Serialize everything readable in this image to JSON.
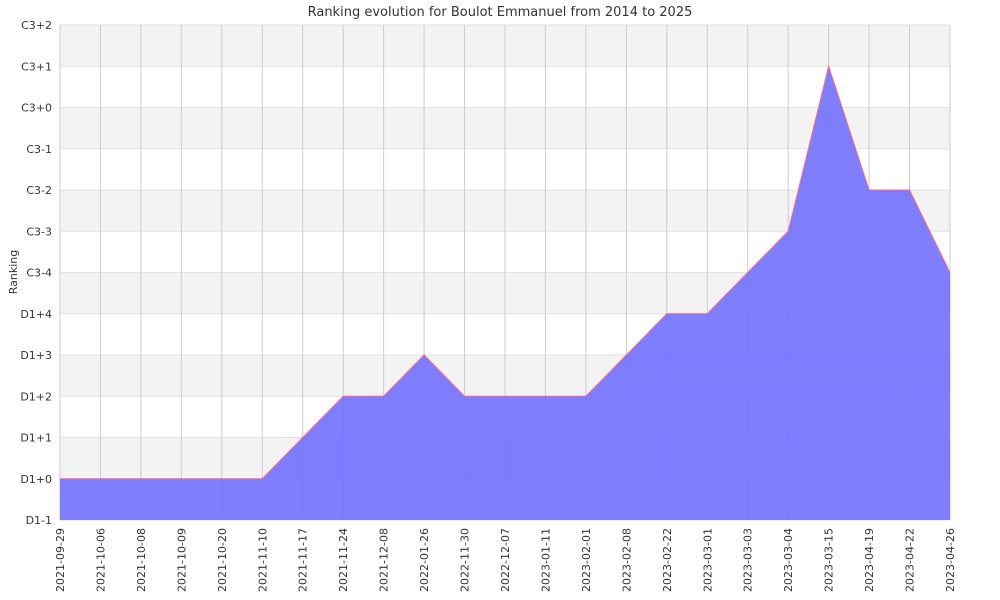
{
  "chart_data": {
    "type": "area",
    "title": "Ranking evolution for Boulot Emmanuel from 2014 to 2025",
    "xlabel": "",
    "ylabel": "Ranking",
    "y_categories": [
      "D1-1",
      "D1+0",
      "D1+1",
      "D1+2",
      "D1+3",
      "D1+4",
      "C3-4",
      "C3-3",
      "C3-2",
      "C3-1",
      "C3+0",
      "C3+1",
      "C3+2"
    ],
    "x": [
      "2021-09-29",
      "2021-10-06",
      "2021-10-08",
      "2021-10-09",
      "2021-10-20",
      "2021-11-10",
      "2021-11-17",
      "2021-11-24",
      "2021-12-08",
      "2022-01-26",
      "2022-11-30",
      "2022-12-07",
      "2023-01-11",
      "2023-02-01",
      "2023-02-08",
      "2023-02-22",
      "2023-03-01",
      "2023-03-03",
      "2023-03-04",
      "2023-03-15",
      "2023-04-19",
      "2023-04-22",
      "2023-04-26"
    ],
    "series": [
      {
        "values": [
          "D1+0",
          "D1+0",
          "D1+0",
          "D1+0",
          "D1+0",
          "D1+0",
          "D1+1",
          "D1+2",
          "D1+2",
          "D1+3",
          "D1+2",
          "D1+2",
          "D1+2",
          "D1+2",
          "D1+3",
          "D1+4",
          "D1+4",
          "C3-4",
          "C3-3",
          "C3+1",
          "C3-2",
          "C3-2",
          "C3-4"
        ]
      }
    ],
    "grid": true,
    "legend": "none",
    "colors": {
      "fill": "#7070ff",
      "line": "#ff6b6b",
      "band": "#f3f3f3",
      "grid": "#cccccc"
    }
  }
}
